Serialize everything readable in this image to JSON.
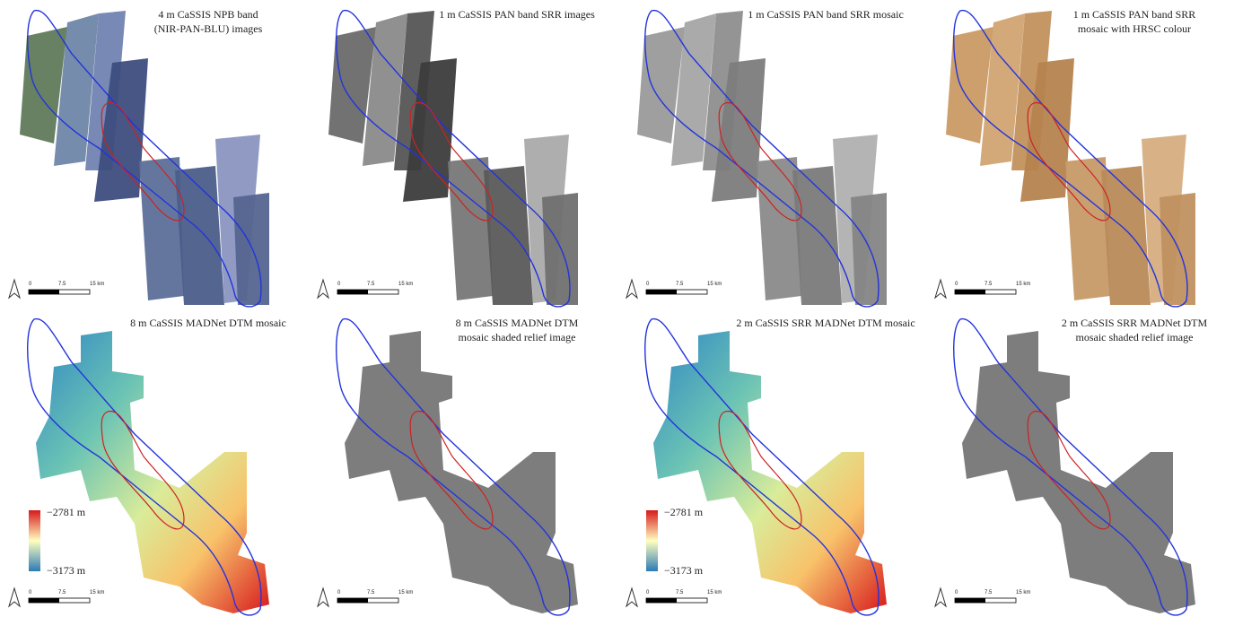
{
  "panels": [
    {
      "title": [
        "4 m CaSSIS NPB band",
        "(NIR-PAN-BLU) images"
      ],
      "scale_bar": [
        "0",
        "7.5",
        "15 km"
      ]
    },
    {
      "title": [
        "1 m CaSSIS PAN band SRR images"
      ],
      "scale_bar": [
        "0",
        "7.5",
        "15 km"
      ]
    },
    {
      "title": [
        "1 m CaSSIS PAN band SRR mosaic"
      ],
      "scale_bar": [
        "0",
        "7.5",
        "15 km"
      ]
    },
    {
      "title": [
        "1 m CaSSIS PAN band SRR",
        "mosaic with HRSC colour"
      ],
      "scale_bar": [
        "0",
        "7.5",
        "15 km"
      ]
    },
    {
      "title": [
        "8 m CaSSIS MADNet DTM mosaic"
      ],
      "scale_bar": [
        "0",
        "7.5",
        "15 km"
      ],
      "colorbar": [
        "−2781 m",
        "−3173 m"
      ]
    },
    {
      "title": [
        "8 m CaSSIS MADNet DTM",
        "mosaic shaded relief image"
      ],
      "scale_bar": [
        "0",
        "7.5",
        "15 km"
      ]
    },
    {
      "title": [
        "2 m CaSSIS SRR MADNet DTM mosaic"
      ],
      "scale_bar": [
        "0",
        "7.5",
        "15 km"
      ],
      "colorbar": [
        "−2781 m",
        "−3173 m"
      ]
    },
    {
      "title": [
        "2 m CaSSIS SRR MADNet DTM",
        "mosaic shaded relief image"
      ],
      "scale_bar": [
        "0",
        "7.5",
        "15 km"
      ]
    }
  ]
}
